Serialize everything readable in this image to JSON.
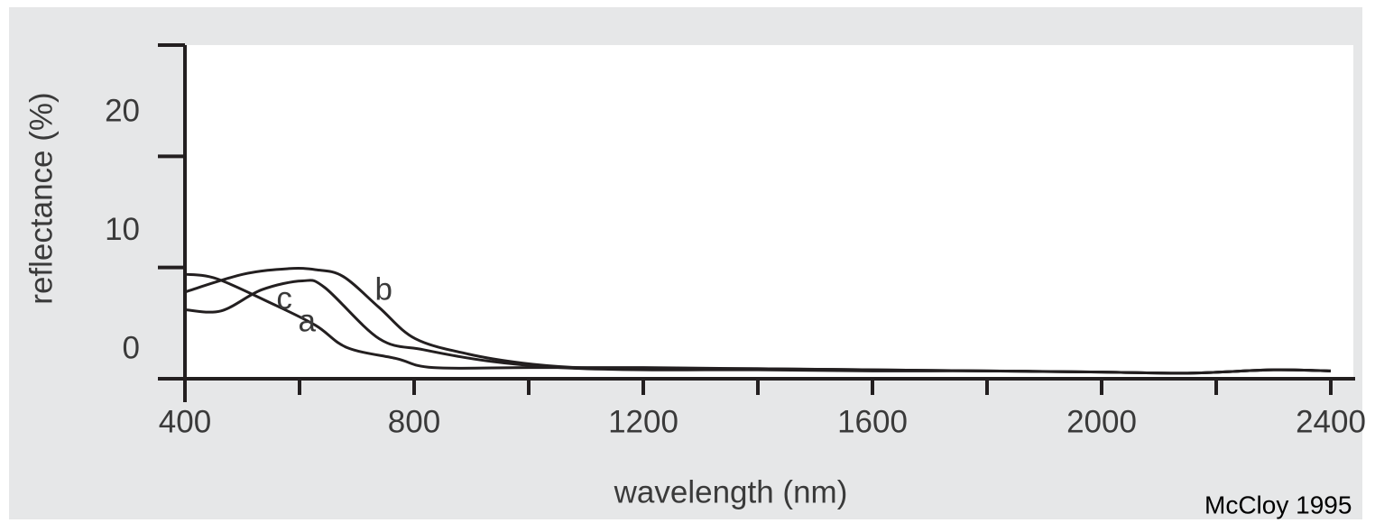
{
  "chart_data": {
    "type": "line",
    "x_label": "wavelength (nm)",
    "y_label": "reflectance (%)",
    "source": "McCloy 1995",
    "xlim": [
      400,
      2400
    ],
    "xticks": [
      400,
      800,
      1200,
      1600,
      2000,
      2400
    ],
    "xminorticks": [
      600,
      1000,
      1400,
      1800,
      2200
    ],
    "ylim": [
      0,
      30
    ],
    "yticks": [
      0,
      10,
      20
    ],
    "series": [
      {
        "name": "a",
        "color": "#231f20",
        "x": [
          400,
          455,
          550,
          628,
          683,
          770,
          833,
          1000,
          1200,
          1400,
          1600,
          1800,
          2000,
          2150,
          2300,
          2400
        ],
        "values": [
          9.4,
          9.0,
          6.8,
          4.8,
          2.8,
          1.8,
          1.0,
          1.0,
          1.0,
          0.9,
          0.8,
          0.7,
          0.6,
          0.5,
          0.8,
          0.7
        ]
      },
      {
        "name": "b",
        "color": "#231f20",
        "x": [
          400,
          502,
          581,
          628,
          676,
          739,
          802,
          896,
          990,
          1085,
          1200,
          1400,
          1600,
          1800,
          2000,
          2150,
          2300,
          2400
        ],
        "values": [
          7.8,
          9.4,
          9.9,
          9.8,
          9.2,
          6.4,
          3.6,
          2.2,
          1.4,
          1.0,
          0.9,
          0.9,
          0.8,
          0.7,
          0.6,
          0.5,
          0.8,
          0.7
        ]
      },
      {
        "name": "c",
        "color": "#231f20",
        "x": [
          400,
          463,
          534,
          605,
          644,
          739,
          817,
          928,
          1054,
          1200,
          1400,
          1600,
          1800,
          2000,
          2150,
          2300,
          2400
        ],
        "values": [
          6.2,
          6.1,
          8.0,
          8.8,
          8.2,
          3.6,
          2.6,
          1.6,
          1.0,
          0.8,
          0.8,
          0.7,
          0.7,
          0.6,
          0.5,
          0.8,
          0.7
        ]
      }
    ]
  }
}
